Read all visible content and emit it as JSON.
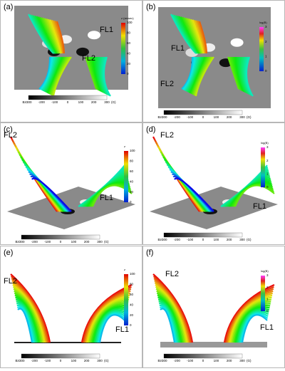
{
  "panels": [
    {
      "label": "(a)",
      "field_lines": [
        "FL1",
        "FL2"
      ],
      "colorbar": {
        "title": "z (arcsec)",
        "ticks": [
          "100",
          "80",
          "60",
          "40",
          "20",
          "0"
        ]
      },
      "bz": {
        "label": "Bz:",
        "ticks": [
          "-300",
          "-200",
          "-100",
          "0",
          "100",
          "200",
          "300"
        ],
        "unit": "(G)"
      }
    },
    {
      "label": "(b)",
      "field_lines": [
        "FL1",
        "FL2"
      ],
      "colorbar": {
        "title": "log(B)",
        "ticks": [
          "3",
          "2",
          "1",
          "0"
        ]
      },
      "bz": {
        "label": "Bz:",
        "ticks": [
          "-300",
          "-200",
          "-100",
          "0",
          "100",
          "200",
          "300"
        ],
        "unit": "(G)"
      }
    },
    {
      "label": "(c)",
      "field_lines": [
        "FL1",
        "FL2"
      ],
      "colorbar": {
        "title": "z",
        "ticks": [
          "100",
          "80",
          "60",
          "40",
          "20",
          "0"
        ]
      },
      "bz": {
        "label": "Bz:",
        "ticks": [
          "-300",
          "-200",
          "-100",
          "0",
          "100",
          "200",
          "300"
        ],
        "unit": "(G)"
      }
    },
    {
      "label": "(d)",
      "field_lines": [
        "FL1",
        "FL2"
      ],
      "colorbar": {
        "title": "log(B)",
        "ticks": [
          "3",
          "2",
          "1",
          "0"
        ]
      },
      "bz": {
        "label": "Bz:",
        "ticks": [
          "-300",
          "-200",
          "-100",
          "0",
          "100",
          "200",
          "300"
        ],
        "unit": "(G)"
      }
    },
    {
      "label": "(e)",
      "field_lines": [
        "FL1",
        "FL2"
      ],
      "colorbar": {
        "title": "z",
        "ticks": [
          "100",
          "80",
          "60",
          "40",
          "20",
          "0"
        ]
      },
      "bz": {
        "label": "Bz:",
        "ticks": [
          "-300",
          "-200",
          "-100",
          "0",
          "100",
          "200",
          "300"
        ],
        "unit": "(G)"
      }
    },
    {
      "label": "(f)",
      "field_lines": [
        "FL1",
        "FL2"
      ],
      "colorbar": {
        "title": "log(B)",
        "ticks": [
          "3",
          "2",
          "1",
          "0"
        ]
      },
      "bz": {
        "label": "Bz:",
        "ticks": [
          "-300",
          "-200",
          "-100",
          "0",
          "100",
          "200",
          "300"
        ],
        "unit": "(G)"
      }
    }
  ]
}
